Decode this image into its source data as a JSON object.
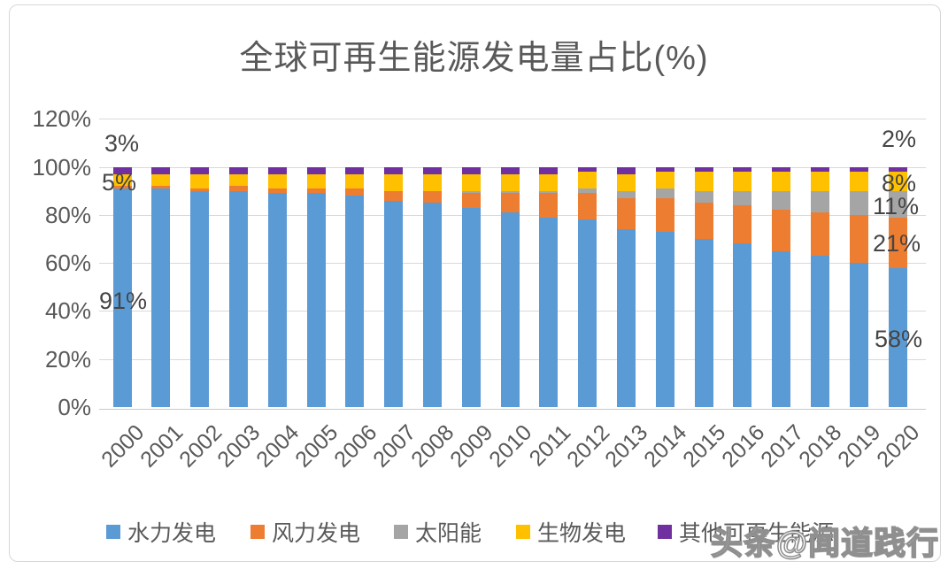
{
  "page": {
    "title": "全球可再生能源发电量占比(%)",
    "watermark": "头条@闻道践行"
  },
  "chart_data": {
    "type": "bar",
    "stacked": true,
    "title": "全球可再生能源发电量占比(%)",
    "xlabel": "",
    "ylabel": "",
    "ylim": [
      0,
      120
    ],
    "ytick_step": 20,
    "yticks": [
      "0%",
      "20%",
      "40%",
      "60%",
      "80%",
      "100%",
      "120%"
    ],
    "grid": true,
    "legend_position": "bottom",
    "categories": [
      "2000",
      "2001",
      "2002",
      "2003",
      "2004",
      "2005",
      "2006",
      "2007",
      "2008",
      "2009",
      "2010",
      "2011",
      "2012",
      "2013",
      "2014",
      "2015",
      "2016",
      "2017",
      "2018",
      "2019",
      "2020"
    ],
    "series": [
      {
        "name": "水力发电",
        "color": "#5B9BD5",
        "values": [
          91,
          91,
          90,
          90,
          89,
          89,
          88,
          86,
          85,
          83,
          81,
          79,
          78,
          74,
          73,
          70,
          68,
          65,
          63,
          60,
          58
        ]
      },
      {
        "name": "风力发电",
        "color": "#ED7D31",
        "values": [
          1,
          1,
          1,
          2,
          2,
          2,
          3,
          4,
          5,
          6,
          8,
          10,
          11,
          13,
          14,
          15,
          16,
          17,
          18,
          20,
          21
        ]
      },
      {
        "name": "太阳能",
        "color": "#A5A5A5",
        "values": [
          0,
          0,
          0,
          0,
          0,
          0,
          0,
          0,
          0,
          1,
          1,
          1,
          2,
          3,
          4,
          5,
          6,
          8,
          9,
          10,
          11
        ]
      },
      {
        "name": "生物发电",
        "color": "#FFC000",
        "values": [
          5,
          5,
          6,
          5,
          6,
          6,
          6,
          7,
          7,
          7,
          7,
          7,
          7,
          7,
          7,
          8,
          8,
          8,
          8,
          8,
          8
        ]
      },
      {
        "name": "其他可再生能源",
        "color": "#7030A0",
        "values": [
          3,
          3,
          3,
          3,
          3,
          3,
          3,
          3,
          3,
          3,
          3,
          3,
          2,
          3,
          2,
          2,
          2,
          2,
          2,
          2,
          2
        ]
      }
    ],
    "annotations": [
      {
        "text": "3%",
        "year": "2000",
        "series": "其他可再生能源"
      },
      {
        "text": "5%",
        "year": "2000",
        "series": "生物发电"
      },
      {
        "text": "91%",
        "year": "2000",
        "series": "水力发电"
      },
      {
        "text": "2%",
        "year": "2020",
        "series": "其他可再生能源"
      },
      {
        "text": "8%",
        "year": "2020",
        "series": "生物发电"
      },
      {
        "text": "11%",
        "year": "2020",
        "series": "太阳能"
      },
      {
        "text": "21%",
        "year": "2020",
        "series": "风力发电"
      },
      {
        "text": "58%",
        "year": "2020",
        "series": "水力发电"
      }
    ]
  }
}
